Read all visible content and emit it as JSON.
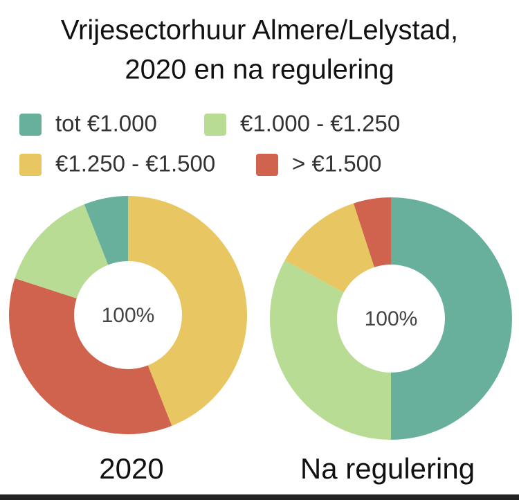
{
  "title": [
    "Vrijesectorhuur Almere/Lelystad,",
    "2020 en na regulering"
  ],
  "legend": {
    "labels": [
      "tot €1.000",
      "€1.000 - €1.250",
      "€1.250 - €1.500",
      "> €1.500"
    ],
    "colors": [
      "#68b09c",
      "#b9dc94",
      "#e8c661",
      "#cf634e"
    ]
  },
  "chart_data": [
    {
      "type": "pie",
      "label": "2020",
      "center_label": "100%",
      "values": [
        6,
        14,
        44,
        36
      ]
    },
    {
      "type": "pie",
      "label": "Na regulering",
      "center_label": "100%",
      "values": [
        50,
        33,
        12,
        5
      ]
    }
  ]
}
